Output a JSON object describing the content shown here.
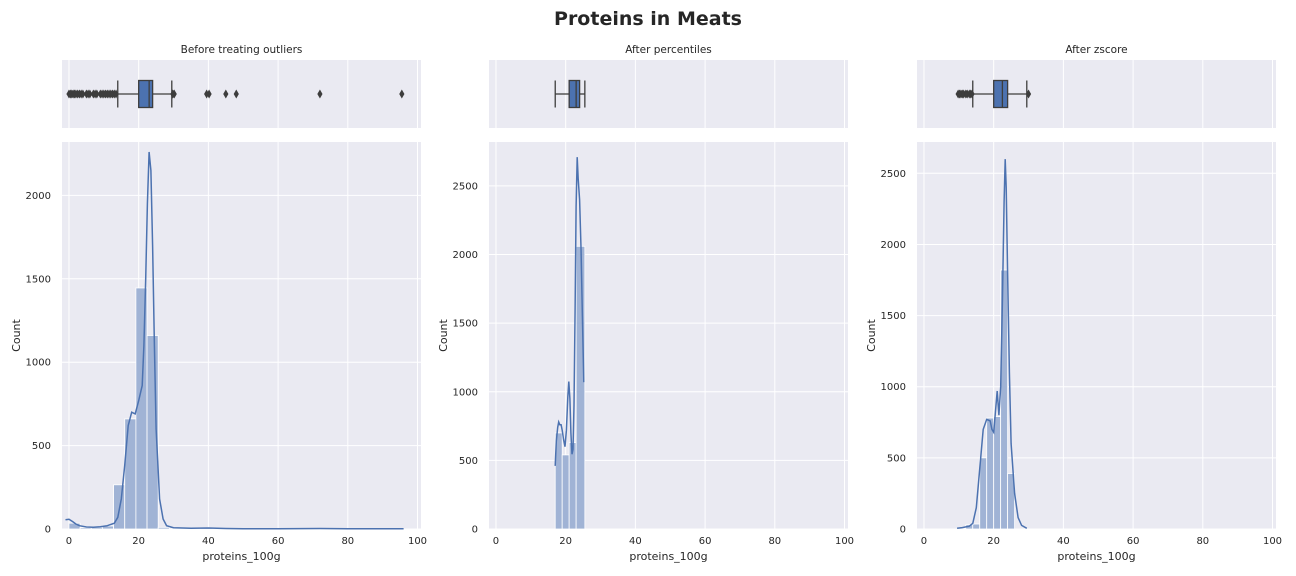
{
  "figure": {
    "title": "Proteins in Meats"
  },
  "chart_data": [
    {
      "type": "histogram",
      "title": "Before treating outliers",
      "xlabel": "proteins_100g",
      "ylabel": "Count",
      "xlim": [
        -2,
        101
      ],
      "ylim": [
        0,
        2320
      ],
      "xticks": [
        0,
        20,
        40,
        60,
        80,
        100
      ],
      "yticks": [
        0,
        500,
        1000,
        1500,
        2000
      ],
      "grid": true,
      "bins": [
        {
          "x0": 0,
          "x1": 3.2,
          "count": 35
        },
        {
          "x0": 3.2,
          "x1": 6.4,
          "count": 8
        },
        {
          "x0": 6.4,
          "x1": 9.6,
          "count": 10
        },
        {
          "x0": 9.6,
          "x1": 12.8,
          "count": 18
        },
        {
          "x0": 12.8,
          "x1": 16.0,
          "count": 265
        },
        {
          "x0": 16.0,
          "x1": 19.2,
          "count": 660
        },
        {
          "x0": 19.2,
          "x1": 22.4,
          "count": 1445
        },
        {
          "x0": 22.4,
          "x1": 25.6,
          "count": 1160
        },
        {
          "x0": 25.6,
          "x1": 28.8,
          "count": 10
        },
        {
          "x0": 38.4,
          "x1": 41.6,
          "count": 3
        }
      ],
      "kde": [
        [
          -1,
          55
        ],
        [
          0,
          58
        ],
        [
          1,
          45
        ],
        [
          2,
          30
        ],
        [
          3,
          20
        ],
        [
          5,
          12
        ],
        [
          7,
          10
        ],
        [
          9,
          14
        ],
        [
          11,
          20
        ],
        [
          13,
          35
        ],
        [
          14,
          70
        ],
        [
          15,
          180
        ],
        [
          16,
          380
        ],
        [
          17,
          620
        ],
        [
          18,
          700
        ],
        [
          19,
          690
        ],
        [
          20,
          770
        ],
        [
          21,
          860
        ],
        [
          21.5,
          1100
        ],
        [
          22,
          1500
        ],
        [
          22.5,
          1950
        ],
        [
          23,
          2260
        ],
        [
          23.5,
          2150
        ],
        [
          24,
          1700
        ],
        [
          24.5,
          1100
        ],
        [
          25,
          600
        ],
        [
          26,
          180
        ],
        [
          27,
          60
        ],
        [
          28,
          20
        ],
        [
          30,
          8
        ],
        [
          35,
          5
        ],
        [
          40,
          6
        ],
        [
          45,
          3
        ],
        [
          50,
          2
        ],
        [
          60,
          2
        ],
        [
          72,
          3
        ],
        [
          80,
          2
        ],
        [
          90,
          2
        ],
        [
          96,
          2
        ]
      ],
      "boxplot": {
        "q1": 20.0,
        "median": 23.0,
        "q3": 24.0,
        "whisker_low": 14.0,
        "whisker_high": 29.5,
        "outliers": [
          0,
          0.4,
          0.8,
          1.2,
          1.6,
          2,
          2.5,
          3,
          3.5,
          4,
          5,
          5.5,
          6,
          7,
          7.5,
          8,
          9,
          9.5,
          10,
          10.5,
          11,
          11.5,
          12,
          12.5,
          13,
          13.5,
          29.8,
          30.2,
          39.5,
          40.2,
          45.0,
          48.0,
          72.0,
          95.5
        ]
      }
    },
    {
      "type": "histogram",
      "title": "After percentiles",
      "xlabel": "proteins_100g",
      "ylabel": "Count",
      "xlim": [
        -2,
        101
      ],
      "ylim": [
        0,
        2820
      ],
      "xticks": [
        0,
        20,
        40,
        60,
        80,
        100
      ],
      "yticks": [
        0,
        500,
        1000,
        1500,
        2000,
        2500
      ],
      "grid": true,
      "bins": [
        {
          "x0": 17.0,
          "x1": 19.0,
          "count": 700
        },
        {
          "x0": 19.0,
          "x1": 21.0,
          "count": 540
        },
        {
          "x0": 21.0,
          "x1": 23.0,
          "count": 630
        },
        {
          "x0": 23.0,
          "x1": 25.5,
          "count": 2060
        }
      ],
      "kde": [
        [
          17.0,
          460
        ],
        [
          17.3,
          640
        ],
        [
          17.7,
          740
        ],
        [
          18.0,
          780
        ],
        [
          18.3,
          760
        ],
        [
          18.7,
          760
        ],
        [
          19.0,
          720
        ],
        [
          19.4,
          650
        ],
        [
          19.8,
          600
        ],
        [
          20.2,
          720
        ],
        [
          20.6,
          960
        ],
        [
          20.9,
          1075
        ],
        [
          21.2,
          950
        ],
        [
          21.5,
          700
        ],
        [
          21.8,
          545
        ],
        [
          22.1,
          580
        ],
        [
          22.4,
          900
        ],
        [
          22.7,
          1600
        ],
        [
          23.0,
          2350
        ],
        [
          23.3,
          2710
        ],
        [
          23.6,
          2550
        ],
        [
          24.0,
          2400
        ],
        [
          24.4,
          2050
        ],
        [
          24.8,
          1550
        ],
        [
          25.2,
          1070
        ]
      ],
      "boxplot": {
        "q1": 21.0,
        "median": 23.0,
        "q3": 24.0,
        "whisker_low": 17.0,
        "whisker_high": 25.5,
        "outliers": []
      }
    },
    {
      "type": "histogram",
      "title": "After zscore",
      "xlabel": "proteins_100g",
      "ylabel": "Count",
      "xlim": [
        -2,
        101
      ],
      "ylim": [
        0,
        2720
      ],
      "xticks": [
        0,
        20,
        40,
        60,
        80,
        100
      ],
      "yticks": [
        0,
        500,
        1000,
        1500,
        2000,
        2500
      ],
      "grid": true,
      "bins": [
        {
          "x0": 10.0,
          "x1": 12.0,
          "count": 6
        },
        {
          "x0": 12.0,
          "x1": 14.0,
          "count": 30
        },
        {
          "x0": 14.0,
          "x1": 16.0,
          "count": 35
        },
        {
          "x0": 16.0,
          "x1": 18.0,
          "count": 500
        },
        {
          "x0": 18.0,
          "x1": 20.0,
          "count": 780
        },
        {
          "x0": 20.0,
          "x1": 22.0,
          "count": 790
        },
        {
          "x0": 22.0,
          "x1": 24.0,
          "count": 1820
        },
        {
          "x0": 24.0,
          "x1": 26.0,
          "count": 390
        }
      ],
      "kde": [
        [
          9.5,
          5
        ],
        [
          11,
          10
        ],
        [
          12,
          15
        ],
        [
          13,
          20
        ],
        [
          14,
          40
        ],
        [
          15,
          150
        ],
        [
          16,
          420
        ],
        [
          17,
          700
        ],
        [
          18,
          770
        ],
        [
          19,
          760
        ],
        [
          19.5,
          700
        ],
        [
          20,
          680
        ],
        [
          20.5,
          820
        ],
        [
          21,
          970
        ],
        [
          21.5,
          800
        ],
        [
          22,
          1000
        ],
        [
          22.5,
          1600
        ],
        [
          23,
          2300
        ],
        [
          23.3,
          2600
        ],
        [
          23.6,
          2400
        ],
        [
          24,
          1800
        ],
        [
          24.5,
          1100
        ],
        [
          25,
          600
        ],
        [
          26,
          250
        ],
        [
          27,
          80
        ],
        [
          28,
          25
        ],
        [
          29.5,
          5
        ]
      ],
      "boxplot": {
        "q1": 20.0,
        "median": 22.5,
        "q3": 24.0,
        "whisker_low": 14.0,
        "whisker_high": 29.5,
        "outliers": [
          9.8,
          10.2,
          10.6,
          11.0,
          11.4,
          12.0,
          12.4,
          13.0,
          13.4,
          13.8,
          30.0
        ]
      }
    }
  ]
}
